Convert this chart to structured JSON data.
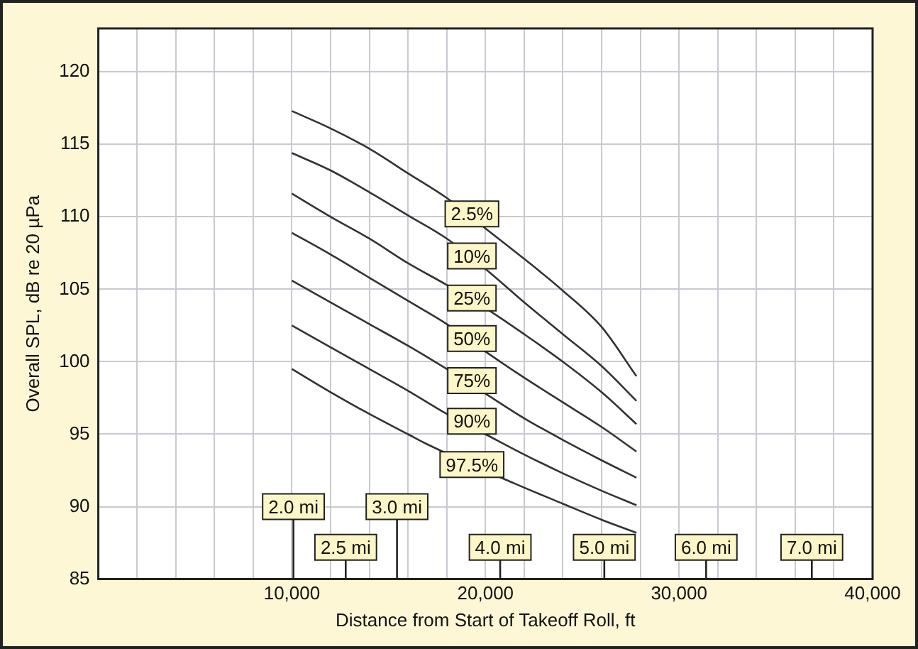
{
  "chart_data": {
    "type": "line",
    "xlabel": "Distance from Start of Takeoff Roll, ft",
    "ylabel": "Overall SPL, dB re 20 µPa",
    "xlim": [
      0,
      40000
    ],
    "ylim": [
      85,
      123
    ],
    "xticks": [
      {
        "value": 0,
        "label": null
      },
      {
        "value": 2000,
        "label": null
      },
      {
        "value": 4000,
        "label": null
      },
      {
        "value": 6000,
        "label": null
      },
      {
        "value": 8000,
        "label": null
      },
      {
        "value": 10000,
        "label": "10,000"
      },
      {
        "value": 12000,
        "label": null
      },
      {
        "value": 14000,
        "label": null
      },
      {
        "value": 16000,
        "label": null
      },
      {
        "value": 18000,
        "label": null
      },
      {
        "value": 20000,
        "label": "20,000"
      },
      {
        "value": 22000,
        "label": null
      },
      {
        "value": 24000,
        "label": null
      },
      {
        "value": 26000,
        "label": null
      },
      {
        "value": 28000,
        "label": null
      },
      {
        "value": 30000,
        "label": "30,000"
      },
      {
        "value": 32000,
        "label": null
      },
      {
        "value": 34000,
        "label": null
      },
      {
        "value": 36000,
        "label": null
      },
      {
        "value": 38000,
        "label": null
      },
      {
        "value": 40000,
        "label": "40,000"
      }
    ],
    "yticks": [
      85,
      90,
      95,
      100,
      105,
      110,
      115,
      120
    ],
    "grid": true,
    "legend": false,
    "marker": "none",
    "line_style": "solid",
    "x": [
      10000,
      12000,
      14000,
      16000,
      18000,
      20000,
      22000,
      24000,
      26000,
      27800
    ],
    "series": [
      {
        "color": "#333333",
        "values": [
          117.3,
          116.1,
          114.7,
          113.0,
          111.3,
          109.2,
          107.1,
          104.9,
          102.4,
          99.0
        ]
      },
      {
        "color": "#333333",
        "values": [
          114.4,
          113.2,
          111.7,
          110.1,
          108.5,
          106.4,
          104.1,
          101.9,
          99.7,
          97.3
        ]
      },
      {
        "color": "#333333",
        "values": [
          111.6,
          110.0,
          108.5,
          106.8,
          105.3,
          103.7,
          101.9,
          100.0,
          97.9,
          95.7
        ]
      },
      {
        "color": "#333333",
        "values": [
          108.9,
          107.4,
          105.8,
          104.2,
          102.6,
          100.7,
          98.9,
          97.2,
          95.5,
          93.8
        ]
      },
      {
        "color": "#333333",
        "values": [
          105.6,
          104.1,
          102.6,
          101.1,
          99.5,
          97.8,
          96.1,
          94.6,
          93.2,
          92.0
        ]
      },
      {
        "color": "#333333",
        "values": [
          102.5,
          101.0,
          99.5,
          98.0,
          96.4,
          95.0,
          93.6,
          92.3,
          91.1,
          90.1
        ]
      },
      {
        "color": "#333333",
        "x": [
          10000,
          12000,
          14000,
          16000,
          17000,
          21500,
          24000,
          26000,
          27800
        ],
        "values": [
          99.5,
          97.9,
          96.4,
          95.0,
          94.3,
          91.6,
          90.2,
          89.1,
          88.2
        ]
      }
    ],
    "annotations": [
      {
        "text": "2.5%",
        "x": 19300,
        "y": 110.2
      },
      {
        "text": "10%",
        "x": 19300,
        "y": 107.3
      },
      {
        "text": "25%",
        "x": 19300,
        "y": 104.4
      },
      {
        "text": "50%",
        "x": 19300,
        "y": 101.6
      },
      {
        "text": "75%",
        "x": 19300,
        "y": 98.7
      },
      {
        "text": "90%",
        "x": 19300,
        "y": 95.9
      },
      {
        "text": "97.5%",
        "x": 19300,
        "y": 92.9
      },
      {
        "text": "2.0 mi",
        "x": 10080,
        "y": 90.0
      },
      {
        "text": "2.5 mi",
        "x": 12780,
        "y": 87.2
      },
      {
        "text": "3.0 mi",
        "x": 15430,
        "y": 90.0
      },
      {
        "text": "4.0 mi",
        "x": 20760,
        "y": 87.2
      },
      {
        "text": "5.0 mi",
        "x": 26140,
        "y": 87.2
      },
      {
        "text": "6.0 mi",
        "x": 31400,
        "y": 87.2
      },
      {
        "text": "7.0 mi",
        "x": 36860,
        "y": 87.2
      }
    ]
  }
}
